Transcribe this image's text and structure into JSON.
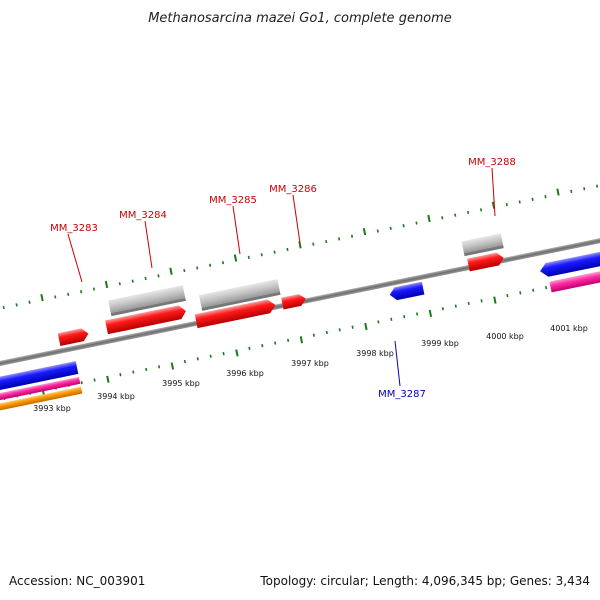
{
  "title": "Methanosarcina mazei Go1, complete genome",
  "footer": {
    "accession": "Accession: NC_003901",
    "summary": "Topology: circular; Length: 4,096,345 bp; Genes: 3,434"
  },
  "colors": {
    "backbone": "#888888",
    "ticks": "#1a7a1a",
    "forward_gene": "#ee0000",
    "reverse_gene": "#0000ee",
    "rna": "#c0c0c0",
    "pink": "#ff33aa",
    "orange": "#ff9900",
    "forward_label": "#cc0000",
    "reverse_label": "#0000bb"
  },
  "ticks": [
    {
      "label": "3993 kbp"
    },
    {
      "label": "3994 kbp"
    },
    {
      "label": "3995 kbp"
    },
    {
      "label": "3996 kbp"
    },
    {
      "label": "3997 kbp"
    },
    {
      "label": "3998 kbp"
    },
    {
      "label": "3999 kbp"
    },
    {
      "label": "4000 kbp"
    },
    {
      "label": "4001 kbp"
    }
  ],
  "gene_labels": [
    {
      "label": "MM_3283",
      "strand": "forward"
    },
    {
      "label": "MM_3284",
      "strand": "forward"
    },
    {
      "label": "MM_3285",
      "strand": "forward"
    },
    {
      "label": "MM_3286",
      "strand": "forward"
    },
    {
      "label": "MM_3287",
      "strand": "reverse"
    },
    {
      "label": "MM_3288",
      "strand": "forward"
    }
  ]
}
